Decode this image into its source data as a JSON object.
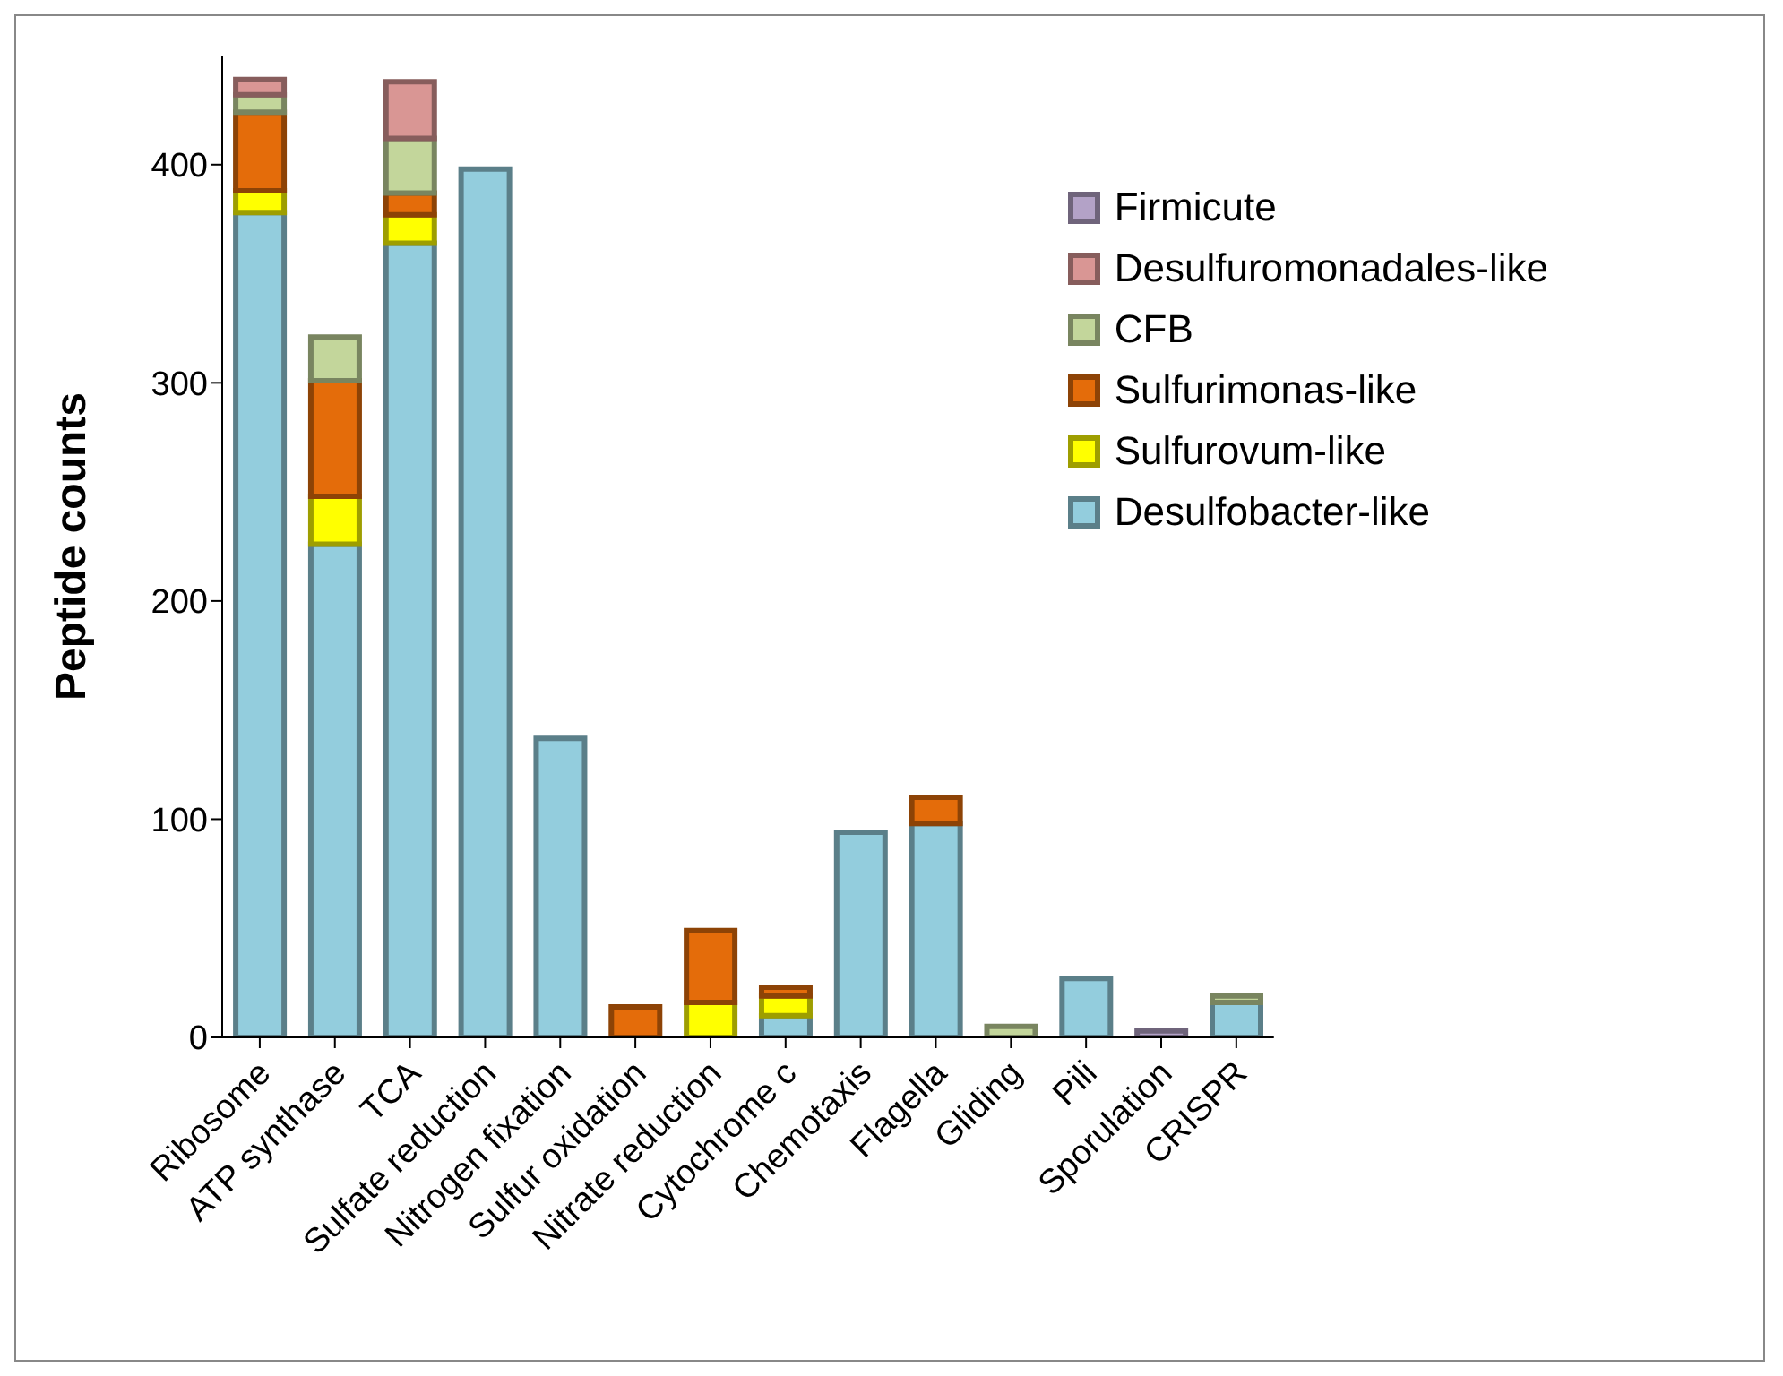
{
  "chart_data": {
    "type": "bar",
    "stacked": true,
    "ylabel": "Peptide counts",
    "categories": [
      "Ribosome",
      "ATP synthase",
      "TCA",
      "Sulfate reduction",
      "Nitrogen fixation",
      "Sulfur oxidation",
      "Nitrate reduction",
      "Cytochrome c",
      "Chemotaxis",
      "Flagella",
      "Gliding",
      "Pili",
      "Sporulation",
      "CRISPR"
    ],
    "series": [
      {
        "name": "Desulfobacter-like",
        "color": "#93cddd",
        "values": [
          378,
          226,
          364,
          398,
          137,
          null,
          null,
          10,
          94,
          98,
          null,
          27,
          null,
          16
        ]
      },
      {
        "name": "Sulfurovum-like",
        "color": "#ffff00",
        "values": [
          10,
          22,
          13,
          null,
          null,
          null,
          16,
          9,
          null,
          null,
          null,
          null,
          null,
          null
        ]
      },
      {
        "name": "Sulfurimonas-like",
        "color": "#e46c0a",
        "values": [
          36,
          53,
          10,
          null,
          null,
          14,
          33,
          4,
          null,
          12,
          null,
          null,
          null,
          null
        ]
      },
      {
        "name": "CFB",
        "color": "#c3d69b",
        "values": [
          8,
          20,
          25,
          null,
          null,
          null,
          null,
          null,
          null,
          null,
          5,
          null,
          null,
          3
        ]
      },
      {
        "name": "Desulfuromonadales-like",
        "color": "#d99694",
        "values": [
          7,
          null,
          26,
          null,
          null,
          null,
          null,
          null,
          null,
          null,
          null,
          null,
          null,
          null
        ]
      },
      {
        "name": "Firmicute",
        "color": "#b3a2c7",
        "values": [
          null,
          null,
          null,
          null,
          null,
          null,
          null,
          null,
          null,
          null,
          null,
          null,
          3,
          null
        ]
      }
    ],
    "ylim": [
      0,
      450
    ],
    "yticks": [
      0,
      100,
      200,
      300,
      400
    ],
    "grid": false,
    "legend": "top right"
  }
}
